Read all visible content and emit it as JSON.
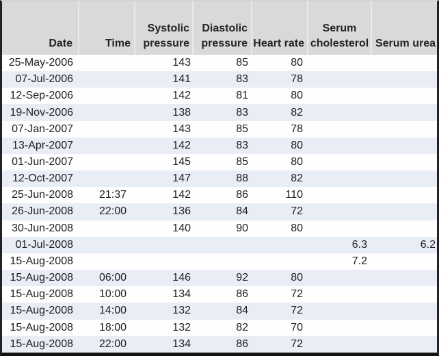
{
  "app": {
    "description": "Spreadsheet table of patient vital sign measurements",
    "colors": {
      "header_background": "#d9d9d9",
      "header_divider": "#ebebeb",
      "row_alternate_background": "#e9edf6",
      "row_background": "#fefefe",
      "text": "#212121",
      "frame_border": "#222226",
      "frame_top_strip": "#d3d3dc"
    }
  },
  "table": {
    "columns": [
      {
        "key": "date",
        "label": "Date"
      },
      {
        "key": "time",
        "label": "Time"
      },
      {
        "key": "systolic",
        "label": "Systolic pressure"
      },
      {
        "key": "diastolic",
        "label": "Diastolic pressure"
      },
      {
        "key": "heart_rate",
        "label": "Heart rate"
      },
      {
        "key": "cholesterol",
        "label": "Serum cholesterol"
      },
      {
        "key": "urea",
        "label": "Serum urea"
      }
    ],
    "rows": [
      {
        "date": "25-May-2006",
        "time": "",
        "systolic": "143",
        "diastolic": "85",
        "heart_rate": "80",
        "cholesterol": "",
        "urea": ""
      },
      {
        "date": "07-Jul-2006",
        "time": "",
        "systolic": "141",
        "diastolic": "83",
        "heart_rate": "78",
        "cholesterol": "",
        "urea": ""
      },
      {
        "date": "12-Sep-2006",
        "time": "",
        "systolic": "142",
        "diastolic": "81",
        "heart_rate": "80",
        "cholesterol": "",
        "urea": ""
      },
      {
        "date": "19-Nov-2006",
        "time": "",
        "systolic": "138",
        "diastolic": "83",
        "heart_rate": "82",
        "cholesterol": "",
        "urea": ""
      },
      {
        "date": "07-Jan-2007",
        "time": "",
        "systolic": "143",
        "diastolic": "85",
        "heart_rate": "78",
        "cholesterol": "",
        "urea": ""
      },
      {
        "date": "13-Apr-2007",
        "time": "",
        "systolic": "142",
        "diastolic": "83",
        "heart_rate": "80",
        "cholesterol": "",
        "urea": ""
      },
      {
        "date": "01-Jun-2007",
        "time": "",
        "systolic": "145",
        "diastolic": "85",
        "heart_rate": "80",
        "cholesterol": "",
        "urea": ""
      },
      {
        "date": "12-Oct-2007",
        "time": "",
        "systolic": "147",
        "diastolic": "88",
        "heart_rate": "82",
        "cholesterol": "",
        "urea": ""
      },
      {
        "date": "25-Jun-2008",
        "time": "21:37",
        "systolic": "142",
        "diastolic": "86",
        "heart_rate": "110",
        "cholesterol": "",
        "urea": ""
      },
      {
        "date": "26-Jun-2008",
        "time": "22:00",
        "systolic": "136",
        "diastolic": "84",
        "heart_rate": "72",
        "cholesterol": "",
        "urea": ""
      },
      {
        "date": "30-Jun-2008",
        "time": "",
        "systolic": "140",
        "diastolic": "90",
        "heart_rate": "80",
        "cholesterol": "",
        "urea": ""
      },
      {
        "date": "01-Jul-2008",
        "time": "",
        "systolic": "",
        "diastolic": "",
        "heart_rate": "",
        "cholesterol": "6.3",
        "urea": "6.2"
      },
      {
        "date": "15-Aug-2008",
        "time": "",
        "systolic": "",
        "diastolic": "",
        "heart_rate": "",
        "cholesterol": "7.2",
        "urea": ""
      },
      {
        "date": "15-Aug-2008",
        "time": "06:00",
        "systolic": "146",
        "diastolic": "92",
        "heart_rate": "80",
        "cholesterol": "",
        "urea": ""
      },
      {
        "date": "15-Aug-2008",
        "time": "10:00",
        "systolic": "134",
        "diastolic": "86",
        "heart_rate": "72",
        "cholesterol": "",
        "urea": ""
      },
      {
        "date": "15-Aug-2008",
        "time": "14:00",
        "systolic": "132",
        "diastolic": "84",
        "heart_rate": "72",
        "cholesterol": "",
        "urea": ""
      },
      {
        "date": "15-Aug-2008",
        "time": "18:00",
        "systolic": "132",
        "diastolic": "82",
        "heart_rate": "70",
        "cholesterol": "",
        "urea": ""
      },
      {
        "date": "15-Aug-2008",
        "time": "22:00",
        "systolic": "134",
        "diastolic": "86",
        "heart_rate": "72",
        "cholesterol": "",
        "urea": ""
      }
    ]
  }
}
